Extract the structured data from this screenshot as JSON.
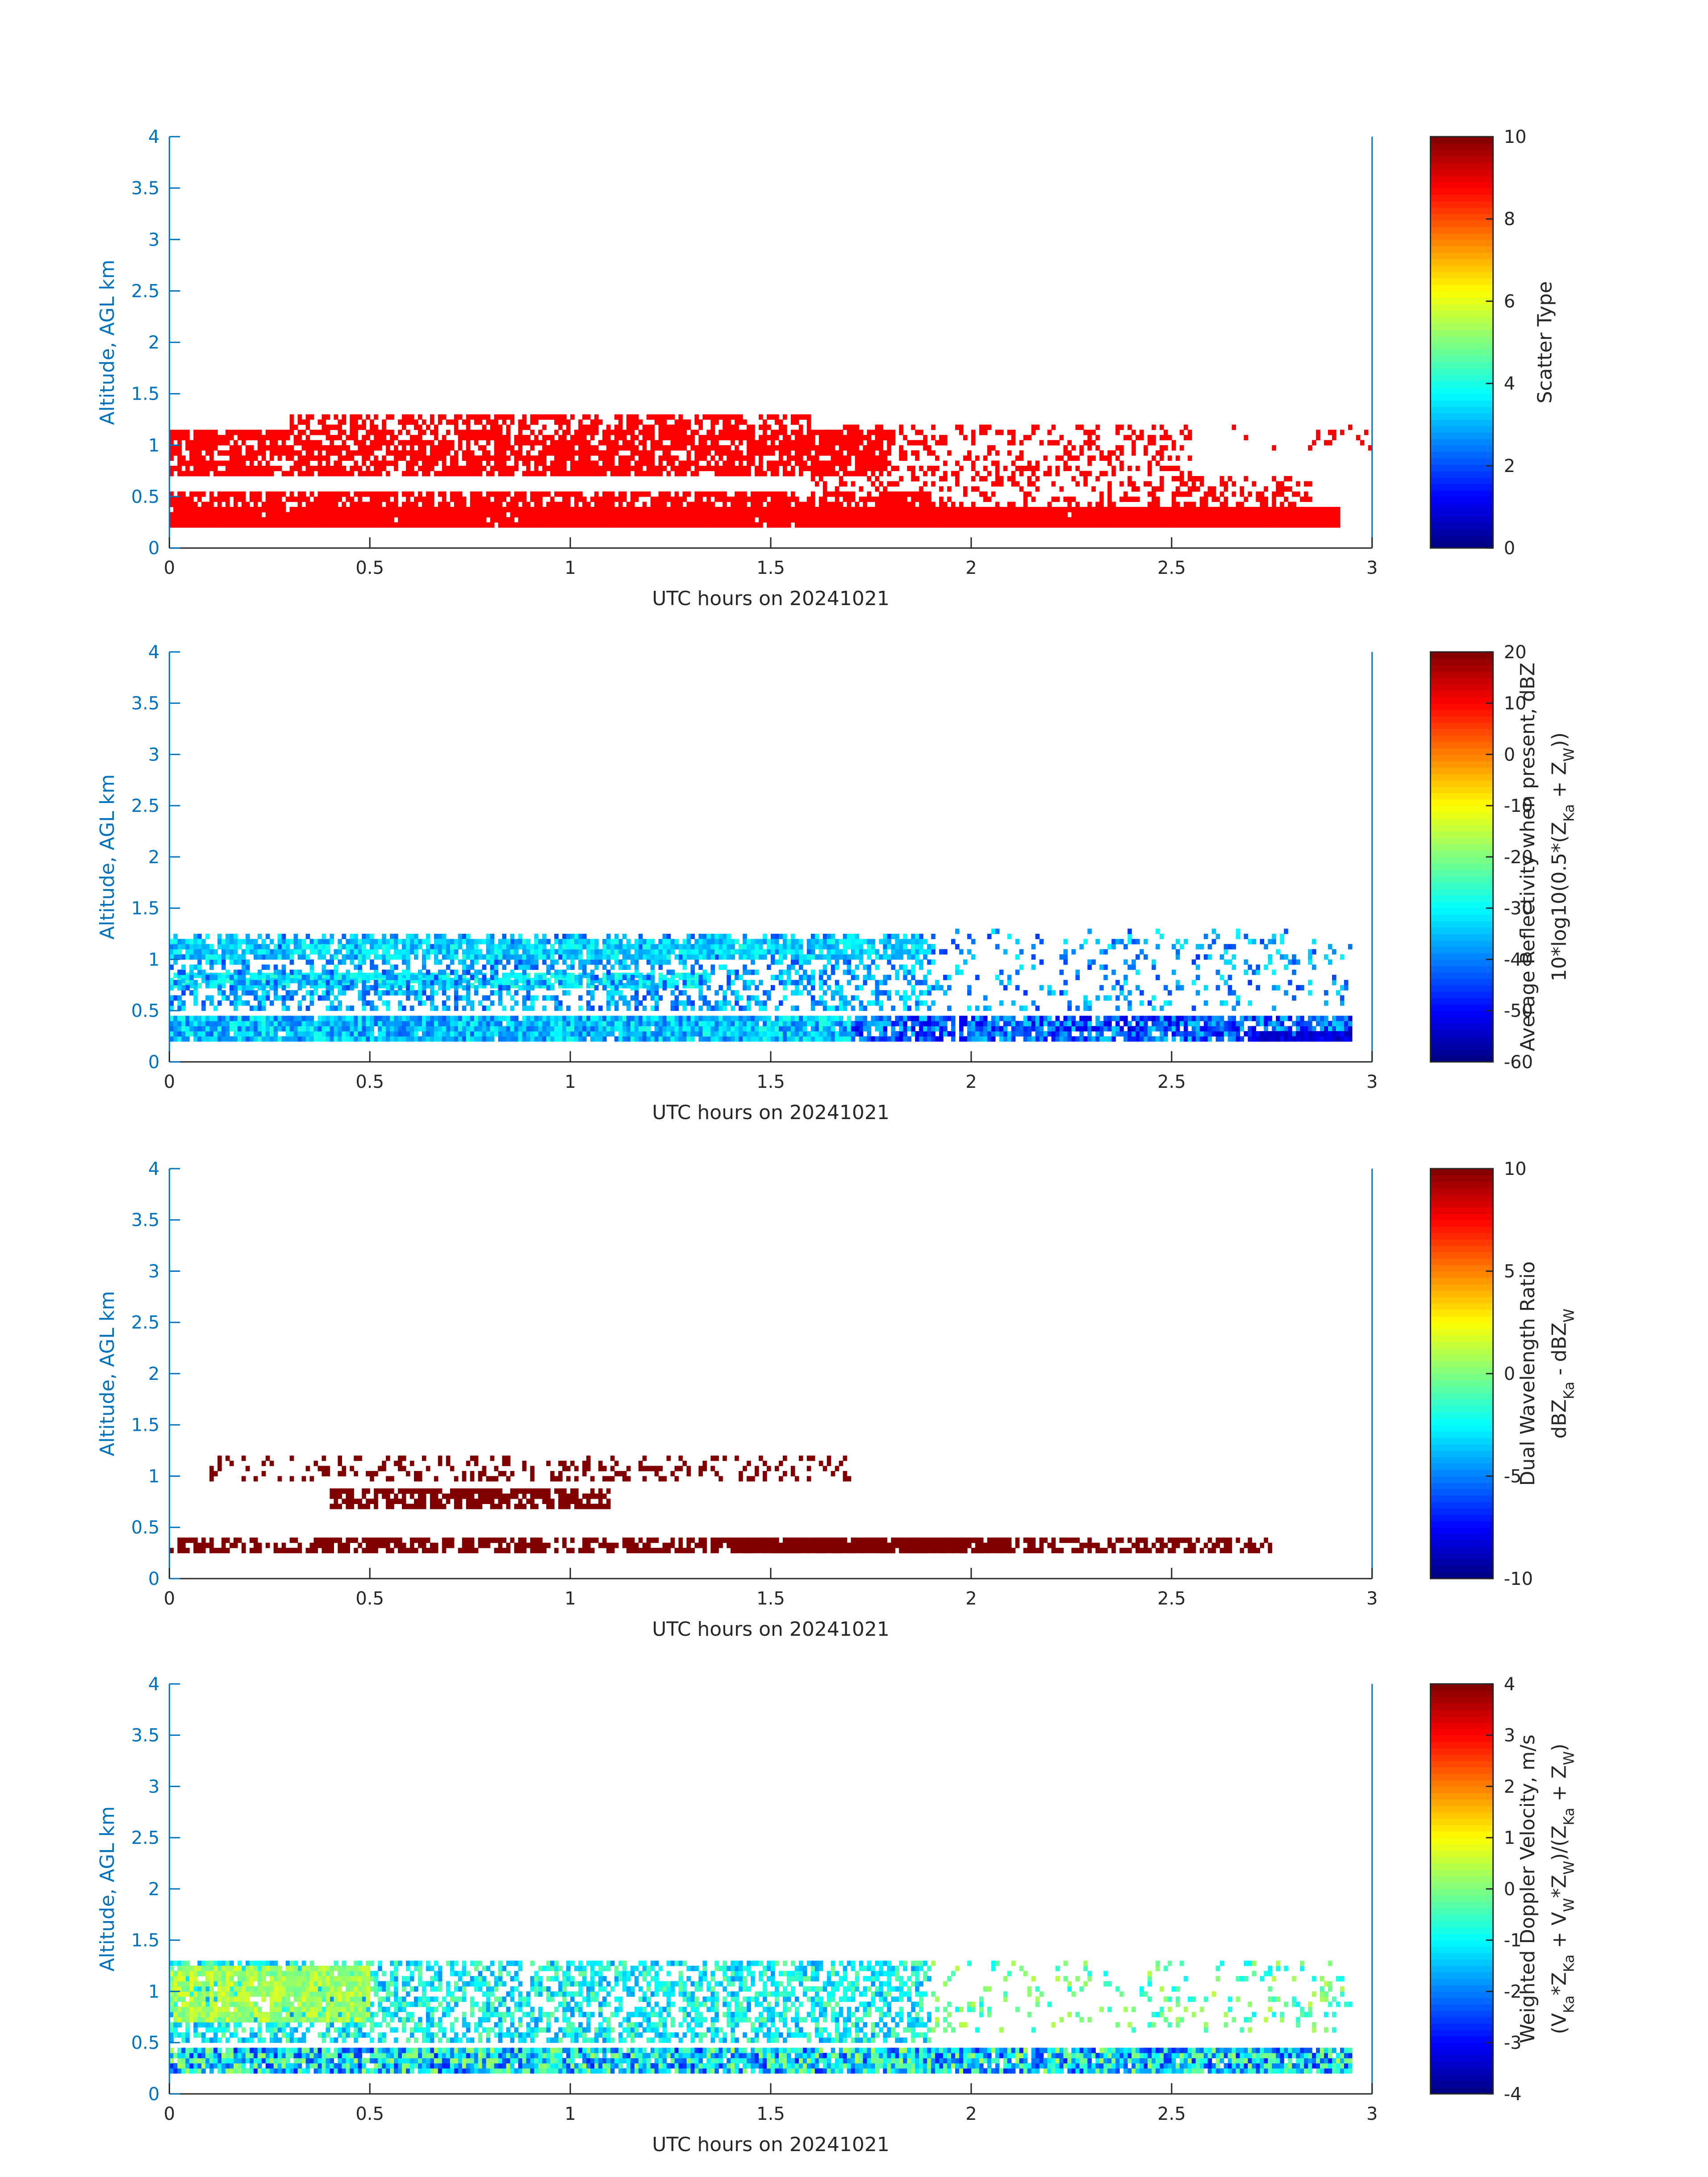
{
  "figure": {
    "ytick_color": "#0072BD",
    "panel_count": 4
  },
  "chart_data": [
    {
      "type": "heatmap",
      "xlabel": "UTC hours on 20241021",
      "ylabel": "Altitude, AGL km",
      "xlim": [
        0,
        3
      ],
      "ylim": [
        0,
        4
      ],
      "xticks": [
        "0",
        "0.5",
        "1",
        "1.5",
        "2",
        "2.5",
        "3"
      ],
      "yticks": [
        "0",
        "0.5",
        "1",
        "1.5",
        "2",
        "2.5",
        "3",
        "3.5",
        "4"
      ],
      "colorbar": {
        "label_lines": [
          "Scatter Type"
        ],
        "range": [
          0,
          10
        ],
        "ticks": [
          "0",
          "2",
          "4",
          "6",
          "8",
          "10"
        ],
        "colormap": "jet"
      },
      "regions": [
        {
          "x": [
            0.0,
            2.92
          ],
          "y": [
            0.2,
            0.4
          ],
          "value": 8.8,
          "density": 0.98
        },
        {
          "x": [
            0.0,
            1.9
          ],
          "y": [
            0.35,
            0.55
          ],
          "value": 8.8,
          "density": 0.75
        },
        {
          "x": [
            0.0,
            1.8
          ],
          "y": [
            0.7,
            1.15
          ],
          "value": 8.8,
          "density": 0.78
        },
        {
          "x": [
            0.3,
            1.6
          ],
          "y": [
            1.15,
            1.3
          ],
          "value": 8.8,
          "density": 0.55
        },
        {
          "x": [
            1.6,
            2.55
          ],
          "y": [
            0.4,
            1.2
          ],
          "value": 8.8,
          "density": 0.3
        },
        {
          "x": [
            2.5,
            2.85
          ],
          "y": [
            0.3,
            0.7
          ],
          "value": 8.8,
          "density": 0.35
        },
        {
          "x": [
            2.6,
            3.0
          ],
          "y": [
            0.9,
            1.2
          ],
          "value": 8.8,
          "density": 0.07
        }
      ]
    },
    {
      "type": "heatmap",
      "xlabel": "UTC hours on 20241021",
      "ylabel": "Altitude, AGL km",
      "xlim": [
        0,
        3
      ],
      "ylim": [
        0,
        4
      ],
      "xticks": [
        "0",
        "0.5",
        "1",
        "1.5",
        "2",
        "2.5",
        "3"
      ],
      "yticks": [
        "0",
        "0.5",
        "1",
        "1.5",
        "2",
        "2.5",
        "3",
        "3.5",
        "4"
      ],
      "colorbar": {
        "label_lines": [
          "Average Reflectivity when present, dBZ",
          "10*log10(0.5*(Z_Ka + Z_W))"
        ],
        "range": [
          -60,
          20
        ],
        "ticks": [
          "-60",
          "-50",
          "-40",
          "-30",
          "-20",
          "-10",
          "0",
          "10",
          "20"
        ],
        "colormap": "jet"
      },
      "regions": [
        {
          "x": [
            0.0,
            1.7
          ],
          "y": [
            0.2,
            0.45
          ],
          "value": -35,
          "spread": 8,
          "density": 0.97
        },
        {
          "x": [
            1.7,
            2.95
          ],
          "y": [
            0.2,
            0.45
          ],
          "value": -43,
          "spread": 10,
          "density": 0.85
        },
        {
          "x": [
            0.0,
            1.35
          ],
          "y": [
            0.72,
            0.85
          ],
          "value": -30,
          "spread": 5,
          "density": 0.85
        },
        {
          "x": [
            0.0,
            1.9
          ],
          "y": [
            0.5,
            1.25
          ],
          "value": -37,
          "spread": 8,
          "density": 0.45
        },
        {
          "x": [
            0.0,
            1.9
          ],
          "y": [
            1.0,
            1.2
          ],
          "value": -33,
          "spread": 6,
          "density": 0.8
        },
        {
          "x": [
            1.9,
            2.95
          ],
          "y": [
            0.5,
            1.3
          ],
          "value": -38,
          "spread": 8,
          "density": 0.15
        },
        {
          "x": [
            2.7,
            2.95
          ],
          "y": [
            0.2,
            0.3
          ],
          "value": -52,
          "spread": 4,
          "density": 0.9
        }
      ]
    },
    {
      "type": "heatmap",
      "xlabel": "UTC hours on 20241021",
      "ylabel": "Altitude, AGL km",
      "xlim": [
        0,
        3
      ],
      "ylim": [
        0,
        4
      ],
      "xticks": [
        "0",
        "0.5",
        "1",
        "1.5",
        "2",
        "2.5",
        "3"
      ],
      "yticks": [
        "0",
        "0.5",
        "1",
        "1.5",
        "2",
        "2.5",
        "3",
        "3.5",
        "4"
      ],
      "colorbar": {
        "label_lines": [
          "Dual Wavelength Ratio",
          "dBZ_Ka - dBZ_W"
        ],
        "range": [
          -10,
          10
        ],
        "ticks": [
          "-10",
          "-5",
          "0",
          "5",
          "10"
        ],
        "colormap": "jet"
      },
      "regions": [
        {
          "x": [
            0.0,
            2.75
          ],
          "y": [
            0.25,
            0.4
          ],
          "value": 10,
          "density": 0.6
        },
        {
          "x": [
            1.4,
            2.1
          ],
          "y": [
            0.25,
            0.4
          ],
          "value": 10,
          "density": 0.95
        },
        {
          "x": [
            0.4,
            1.1
          ],
          "y": [
            0.68,
            0.85
          ],
          "value": 10,
          "density": 0.75
        },
        {
          "x": [
            0.1,
            1.7
          ],
          "y": [
            0.95,
            1.2
          ],
          "value": 10,
          "density": 0.25
        }
      ]
    },
    {
      "type": "heatmap",
      "xlabel": "UTC hours on 20241021",
      "ylabel": "Altitude, AGL km",
      "xlim": [
        0,
        3
      ],
      "ylim": [
        0,
        4
      ],
      "xticks": [
        "0",
        "0.5",
        "1",
        "1.5",
        "2",
        "2.5",
        "3"
      ],
      "yticks": [
        "0",
        "0.5",
        "1",
        "1.5",
        "2",
        "2.5",
        "3",
        "3.5",
        "4"
      ],
      "colorbar": {
        "label_lines": [
          "Weighted Doppler Velocity, m/s",
          "(V_Ka*Z_Ka + V_W*Z_W)/(Z_Ka + Z_W)"
        ],
        "range": [
          -4,
          4
        ],
        "ticks": [
          "-4",
          "-3",
          "-2",
          "-1",
          "0",
          "1",
          "2",
          "3",
          "4"
        ],
        "colormap": "jet"
      },
      "regions": [
        {
          "x": [
            0.0,
            2.95
          ],
          "y": [
            0.2,
            0.45
          ],
          "value": -1.2,
          "spread": 1.6,
          "density": 0.95
        },
        {
          "x": [
            0.0,
            1.9
          ],
          "y": [
            0.5,
            1.3
          ],
          "value": -1.0,
          "spread": 0.9,
          "density": 0.55
        },
        {
          "x": [
            0.0,
            0.5
          ],
          "y": [
            0.7,
            1.25
          ],
          "value": 0.3,
          "spread": 0.5,
          "density": 0.85
        },
        {
          "x": [
            1.9,
            2.95
          ],
          "y": [
            0.6,
            1.3
          ],
          "value": -0.3,
          "spread": 0.8,
          "density": 0.15
        }
      ]
    }
  ]
}
